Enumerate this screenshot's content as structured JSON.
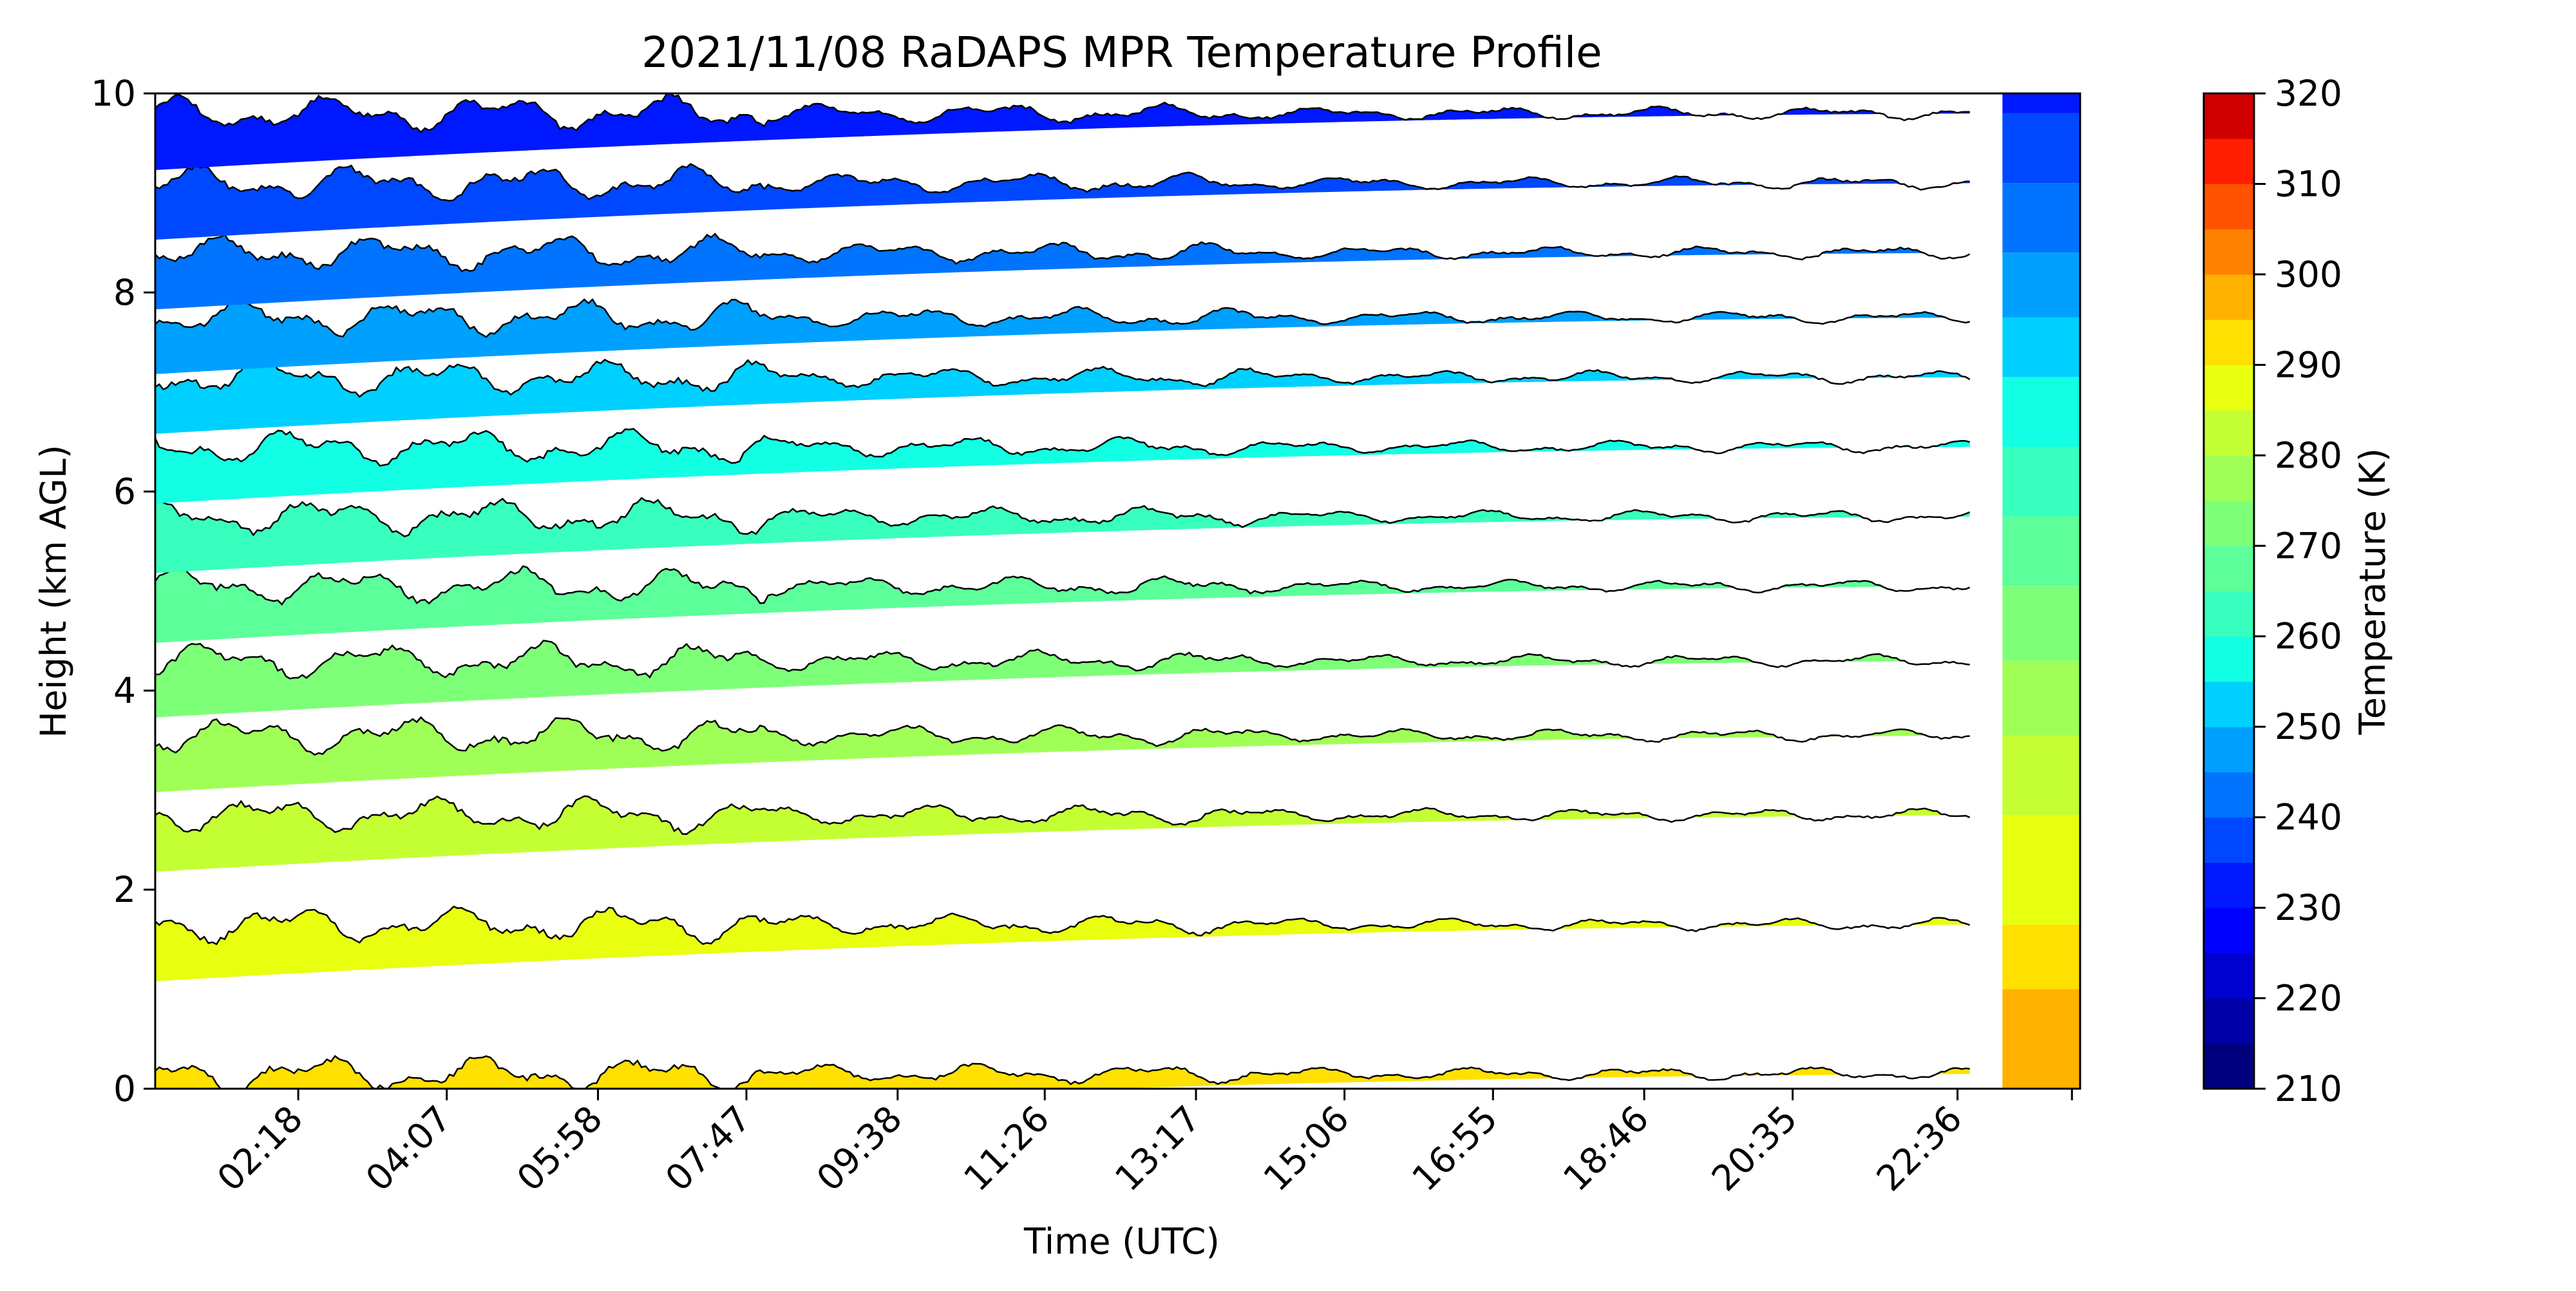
{
  "chart_data": {
    "type": "heatmap",
    "subtype": "filled-contour",
    "title": "2021/11/08 RaDAPS MPR Temperature Profile",
    "xlabel": "Time (UTC)",
    "ylabel": "Height (km AGL)",
    "x_range_hours": [
      0.55,
      24.1
    ],
    "x_ticks": [
      "02:18",
      "04:07",
      "05:58",
      "07:47",
      "09:38",
      "11:26",
      "13:17",
      "15:06",
      "16:55",
      "18:46",
      "20:35",
      "22:36"
    ],
    "x_tick_hours": [
      2.3,
      4.117,
      5.967,
      7.783,
      9.633,
      11.433,
      13.283,
      15.1,
      16.917,
      18.767,
      20.583,
      22.6
    ],
    "ylim": [
      0,
      10
    ],
    "y_ticks": [
      0,
      2,
      4,
      6,
      8,
      10
    ],
    "colorbar": {
      "label": "Temperature (K)",
      "range": [
        210,
        320
      ],
      "tick_values": [
        210,
        220,
        230,
        240,
        250,
        260,
        270,
        280,
        290,
        300,
        310,
        320
      ],
      "tick_labels": [
        "210",
        "220",
        "230",
        "240",
        "250",
        "260",
        "270",
        "280",
        "290",
        "300",
        "310",
        "320"
      ],
      "levels": [
        210,
        215,
        220,
        225,
        230,
        235,
        240,
        245,
        250,
        255,
        260,
        265,
        270,
        275,
        280,
        285,
        290,
        295,
        300,
        305,
        310,
        315,
        320
      ],
      "colors": [
        "#00007f",
        "#0000a7",
        "#0000d1",
        "#0000ff",
        "#0018ff",
        "#0048ff",
        "#0074ff",
        "#00a0ff",
        "#00d0ff",
        "#12ffe4",
        "#38ffbe",
        "#5cff99",
        "#7eff78",
        "#a0ff56",
        "#c4ff33",
        "#e8ff0f",
        "#ffe000",
        "#ffb100",
        "#ff8200",
        "#ff5300",
        "#ff1f00",
        "#d10000",
        "#7f0000"
      ]
    },
    "contour_bands": [
      {
        "base_height_km": 0.0,
        "temperature_k": 293
      },
      {
        "base_height_km": 1.5,
        "temperature_k": 288
      },
      {
        "base_height_km": 2.6,
        "temperature_k": 283
      },
      {
        "base_height_km": 3.4,
        "temperature_k": 278
      },
      {
        "base_height_km": 4.15,
        "temperature_k": 273
      },
      {
        "base_height_km": 4.9,
        "temperature_k": 268
      },
      {
        "base_height_km": 5.6,
        "temperature_k": 263
      },
      {
        "base_height_km": 6.3,
        "temperature_k": 258
      },
      {
        "base_height_km": 7.0,
        "temperature_k": 253
      },
      {
        "base_height_km": 7.6,
        "temperature_k": 248
      },
      {
        "base_height_km": 8.25,
        "temperature_k": 243
      },
      {
        "base_height_km": 8.95,
        "temperature_k": 238
      },
      {
        "base_height_km": 9.65,
        "temperature_k": 233
      }
    ],
    "grid": false,
    "legend": "colorbar-right"
  }
}
